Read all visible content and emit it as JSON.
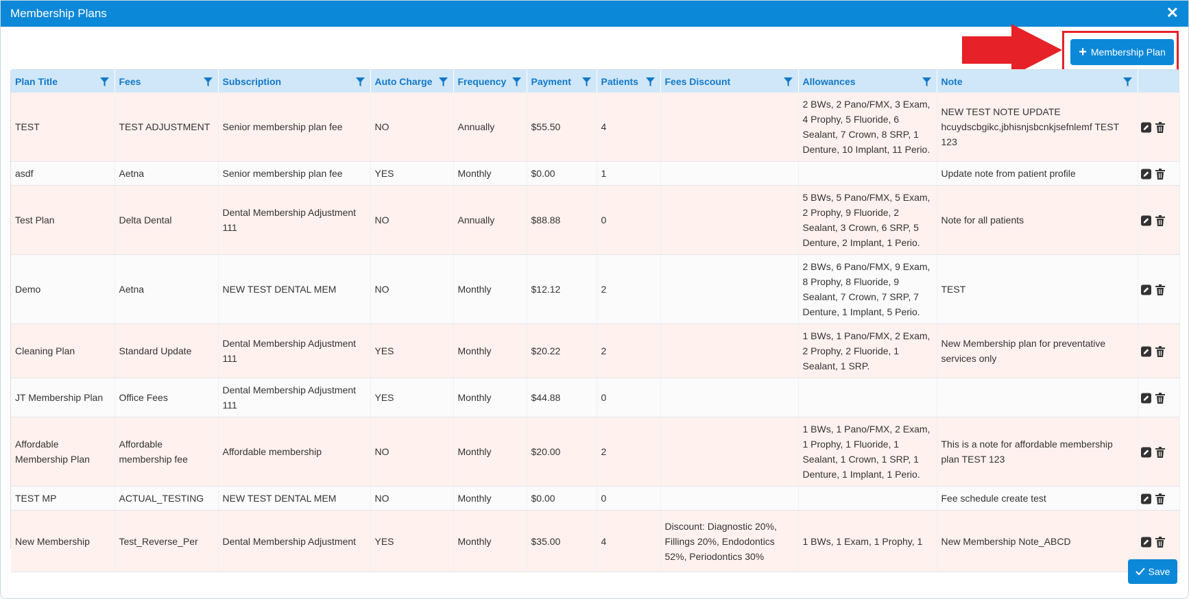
{
  "dialog": {
    "title": "Membership Plans",
    "close_glyph": "✕"
  },
  "toolbar": {
    "add_label": "Membership Plan",
    "add_icon": "plus-icon",
    "save_label": "Save",
    "save_icon": "check-icon"
  },
  "colors": {
    "accent": "#0c88d8",
    "header_bg": "#cfe7f8",
    "header_text": "#1478c8",
    "row_highlight": "#fff1ee",
    "annotation_red": "#e62127"
  },
  "table": {
    "columns": [
      "Plan Title",
      "Fees",
      "Subscription",
      "Auto Charge",
      "Frequency",
      "Payment",
      "Patients",
      "Fees Discount",
      "Allowances",
      "Note"
    ],
    "rows": [
      [
        "TEST",
        "TEST ADJUSTMENT",
        "Senior membership plan fee",
        "NO",
        "Annually",
        "$55.50",
        "4",
        "",
        "2 BWs, 2 Pano/FMX, 3 Exam, 4 Prophy, 5 Fluoride, 6 Sealant, 7 Crown, 8 SRP, 1 Denture, 10 Implant, 11 Perio.",
        "NEW TEST NOTE UPDATE hcuydscbgikc,jbhisnjsbcnkjsefnlemf TEST 123"
      ],
      [
        "asdf",
        "Aetna",
        "Senior membership plan fee",
        "YES",
        "Monthly",
        "$0.00",
        "1",
        "",
        "",
        "Update note from patient profile"
      ],
      [
        "Test Plan",
        "Delta Dental",
        "Dental Membership Adjustment 111",
        "NO",
        "Annually",
        "$88.88",
        "0",
        "",
        "5 BWs, 5 Pano/FMX, 5 Exam, 2 Prophy, 9 Fluoride, 2 Sealant, 3 Crown, 6 SRP, 5 Denture, 2 Implant, 1 Perio.",
        "Note for all patients"
      ],
      [
        "Demo",
        "Aetna",
        "NEW TEST DENTAL MEM",
        "NO",
        "Monthly",
        "$12.12",
        "2",
        "",
        "2 BWs, 6 Pano/FMX, 9 Exam, 8 Prophy, 8 Fluoride, 9 Sealant, 7 Crown, 7 SRP, 7 Denture, 1 Implant, 5 Perio.",
        "TEST"
      ],
      [
        "Cleaning Plan",
        "Standard Update",
        "Dental Membership Adjustment 111",
        "YES",
        "Monthly",
        "$20.22",
        "2",
        "",
        "1 BWs, 1 Pano/FMX, 2 Exam, 2 Prophy, 2 Fluoride, 1 Sealant, 1 SRP.",
        "New Membership plan for preventative services only"
      ],
      [
        "JT Membership Plan",
        "Office Fees",
        "Dental Membership Adjustment 111",
        "YES",
        "Monthly",
        "$44.88",
        "0",
        "",
        "",
        ""
      ],
      [
        "Affordable Membership Plan",
        "Affordable membership fee",
        "Affordable membership",
        "NO",
        "Monthly",
        "$20.00",
        "2",
        "",
        "1 BWs, 1 Pano/FMX, 2 Exam, 1 Prophy, 1 Fluoride, 1 Sealant, 1 Crown, 1 SRP, 1 Denture, 1 Implant, 1 Perio.",
        "This is a note for affordable membership plan TEST 123"
      ],
      [
        "TEST MP",
        "ACTUAL_TESTING",
        "NEW TEST DENTAL MEM",
        "NO",
        "Monthly",
        "$0.00",
        "0",
        "",
        "",
        "Fee schedule create test"
      ],
      [
        "New Membership",
        "Test_Reverse_Per",
        "Dental Membership Adjustment",
        "YES",
        "Monthly",
        "$35.00",
        "4",
        "Discount: Diagnostic 20%, Fillings 20%, Endodontics 52%, Periodontics 30%",
        "1 BWs, 1 Exam, 1 Prophy, 1",
        "New Membership Note_ABCD"
      ]
    ],
    "row_styles": [
      "pink",
      "plain",
      "pink",
      "plain",
      "pink",
      "plain",
      "pink",
      "plain",
      "pink"
    ],
    "row_actions": [
      "edit-icon",
      "delete-icon"
    ]
  }
}
